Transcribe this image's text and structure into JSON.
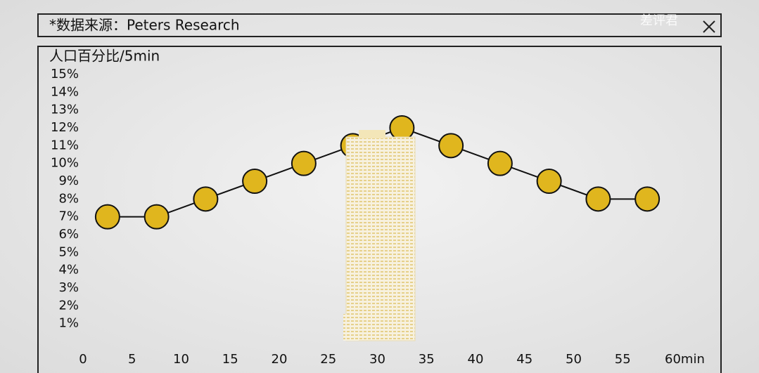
{
  "source": "*数据来源：Peters Research",
  "watermark": "差评君",
  "chart_data": {
    "type": "line",
    "y_label": "人口百分比/5min",
    "x": [
      2.5,
      7.5,
      12.5,
      17.5,
      22.5,
      27.5,
      32.5,
      37.5,
      42.5,
      47.5,
      52.5,
      57.5
    ],
    "series": [
      {
        "name": "人口百分比",
        "color": "#e0b61e",
        "values": [
          7,
          7,
          8,
          9,
          10,
          11,
          12,
          11,
          10,
          9,
          8,
          8
        ]
      }
    ],
    "xlim": [
      0,
      60
    ],
    "xticks": [
      0,
      5,
      10,
      15,
      20,
      25,
      30,
      35,
      40,
      45,
      50,
      55,
      {
        "value": 60,
        "label": "60min"
      }
    ],
    "ylim": [
      0,
      15
    ],
    "yticks": [
      {
        "value": 1,
        "label": "1%"
      },
      {
        "value": 2,
        "label": "2%"
      },
      {
        "value": 3,
        "label": "3%"
      },
      {
        "value": 4,
        "label": "4%"
      },
      {
        "value": 5,
        "label": "5%"
      },
      {
        "value": 6,
        "label": "6%"
      },
      {
        "value": 7,
        "label": "7%"
      },
      {
        "value": 8,
        "label": "8%"
      },
      {
        "value": 9,
        "label": "9%"
      },
      {
        "value": 10,
        "label": "10%"
      },
      {
        "value": 11,
        "label": "11%"
      },
      {
        "value": 12,
        "label": "12%"
      },
      {
        "value": 13,
        "label": "13%"
      },
      {
        "value": 14,
        "label": "14%"
      },
      {
        "value": 15,
        "label": "15%"
      }
    ]
  }
}
